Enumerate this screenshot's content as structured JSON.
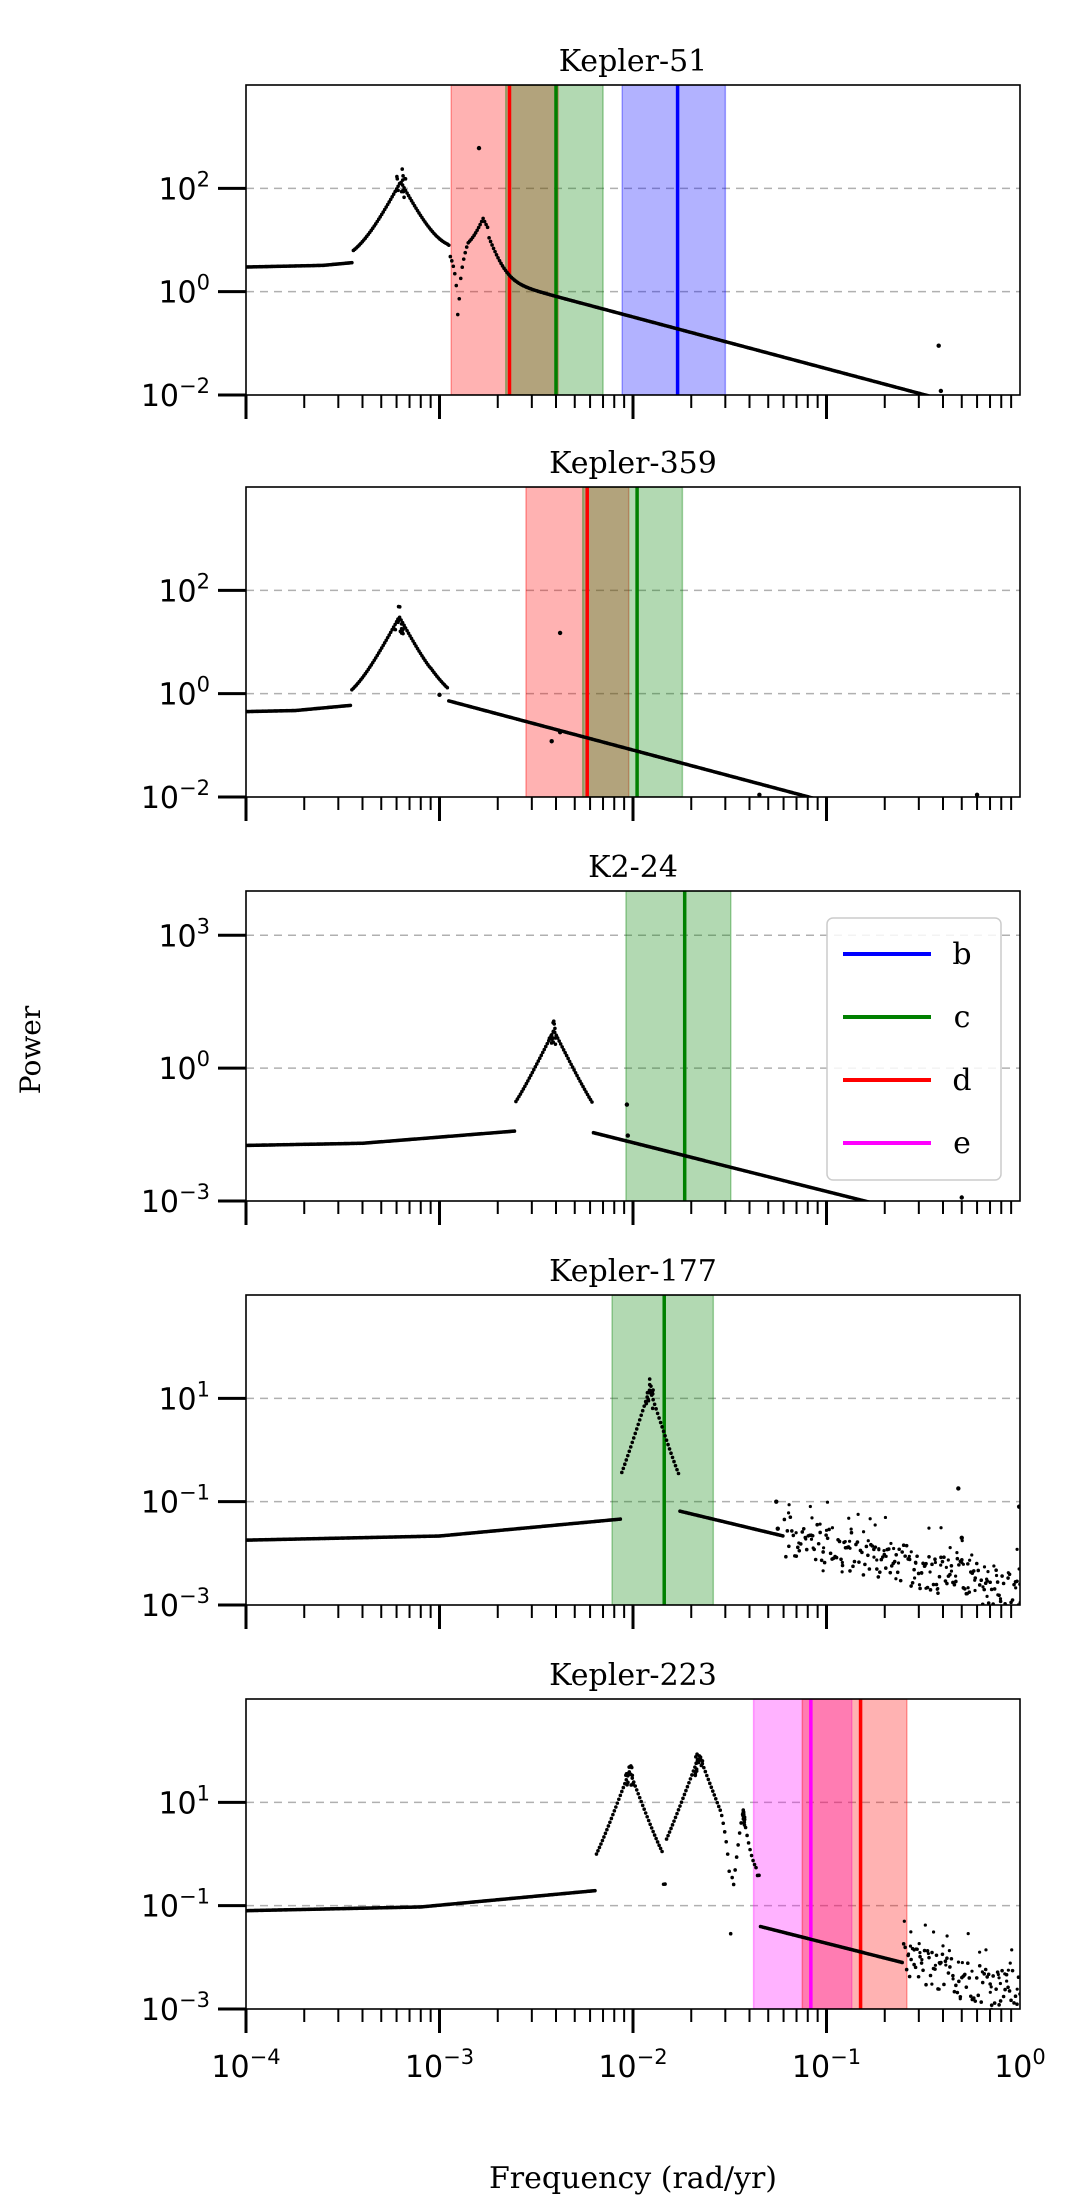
{
  "figure": {
    "ylabel": "Power",
    "xlabel": "Frequency (rad/yr)"
  },
  "legend": {
    "placement": "inside-right of K2-24 panel",
    "entries": [
      {
        "label": "b",
        "color": "#0000ff"
      },
      {
        "label": "c",
        "color": "#008000"
      },
      {
        "label": "d",
        "color": "#ff0000"
      },
      {
        "label": "e",
        "color": "#ff00ff"
      }
    ]
  },
  "chart_data": [
    {
      "type": "scatter",
      "title": "Kepler-51",
      "xscale": "log",
      "yscale": "log",
      "xlim": [
        0.0001,
        1
      ],
      "ylim": [
        0.01,
        10000
      ],
      "yticks": [
        {
          "value": 0.01,
          "label": "10^-2"
        },
        {
          "value": 1,
          "label": "10^0"
        },
        {
          "value": 100,
          "label": "10^2"
        }
      ],
      "xticklabels": false,
      "bands": [
        {
          "planet": "d",
          "color": "#ff0000",
          "lo": 0.00115,
          "hi": 0.0041,
          "center": 0.0023
        },
        {
          "planet": "c",
          "color": "#008000",
          "lo": 0.0022,
          "hi": 0.007,
          "center": 0.004
        },
        {
          "planet": "b",
          "color": "#0000ff",
          "lo": 0.0088,
          "hi": 0.03,
          "center": 0.017
        }
      ],
      "spectrum": {
        "floor": 3.0,
        "plateau_end": 0.00025,
        "peaks": [
          {
            "x": 0.00063,
            "amp": 130,
            "width": 0.1,
            "scatter": 0.15
          }
        ],
        "secondary": [
          {
            "x": 0.00168,
            "amp": 20,
            "width": 0.08
          }
        ],
        "dip": {
          "x": 0.00125,
          "depth": 0.04
        },
        "tail": {
          "start": 0.0018,
          "value": 1.8,
          "slope": -1.0
        },
        "outliers": [
          {
            "x": 0.0016,
            "y": 600
          },
          {
            "x": 0.38,
            "y": 0.09
          },
          {
            "x": 0.39,
            "y": 0.012
          }
        ]
      }
    },
    {
      "type": "scatter",
      "title": "Kepler-359",
      "xscale": "log",
      "yscale": "log",
      "xlim": [
        0.0001,
        1
      ],
      "ylim": [
        0.01,
        10000
      ],
      "yticks": [
        {
          "value": 0.01,
          "label": "10^-2"
        },
        {
          "value": 1,
          "label": "10^0"
        },
        {
          "value": 100,
          "label": "10^2"
        }
      ],
      "xticklabels": false,
      "bands": [
        {
          "planet": "d",
          "color": "#ff0000",
          "lo": 0.0028,
          "hi": 0.0095,
          "center": 0.0058
        },
        {
          "planet": "c",
          "color": "#008000",
          "lo": 0.0055,
          "hi": 0.018,
          "center": 0.0105
        }
      ],
      "spectrum": {
        "floor": 0.45,
        "plateau_end": 0.00018,
        "peaks": [
          {
            "x": 0.00062,
            "amp": 30,
            "width": 0.1,
            "scatter": 0.15
          }
        ],
        "secondary": [],
        "dip": null,
        "tail": {
          "start": 0.0009,
          "value": 0.9,
          "slope": -1.0
        },
        "outliers": [
          {
            "x": 0.001,
            "y": 0.95
          },
          {
            "x": 0.0042,
            "y": 15
          },
          {
            "x": 0.0042,
            "y": 0.18
          },
          {
            "x": 0.0038,
            "y": 0.12
          },
          {
            "x": 0.045,
            "y": 0.011
          },
          {
            "x": 0.6,
            "y": 0.011
          }
        ]
      }
    },
    {
      "type": "scatter",
      "title": "K2-24",
      "xscale": "log",
      "yscale": "log",
      "xlim": [
        0.0001,
        1
      ],
      "ylim": [
        0.001,
        10000
      ],
      "yticks": [
        {
          "value": 0.001,
          "label": "10^-3"
        },
        {
          "value": 1,
          "label": "10^0"
        },
        {
          "value": 1000,
          "label": "10^3"
        }
      ],
      "xticklabels": false,
      "bands": [
        {
          "planet": "c",
          "color": "#008000",
          "lo": 0.0092,
          "hi": 0.032,
          "center": 0.0185
        }
      ],
      "spectrum": {
        "floor": 0.018,
        "plateau_end": 0.0004,
        "peaks": [
          {
            "x": 0.0039,
            "amp": 7,
            "width": 0.08,
            "scatter": 0.12
          }
        ],
        "secondary": [],
        "dip": null,
        "tail": {
          "start": 0.0045,
          "value": 0.05,
          "slope": -1.1
        },
        "outliers": [
          {
            "x": 0.0093,
            "y": 0.15
          },
          {
            "x": 0.0094,
            "y": 0.03
          },
          {
            "x": 0.5,
            "y": 0.0012
          }
        ]
      }
    },
    {
      "type": "scatter",
      "title": "Kepler-177",
      "xscale": "log",
      "yscale": "log",
      "xlim": [
        0.0001,
        1
      ],
      "ylim": [
        0.001,
        1000
      ],
      "yticks": [
        {
          "value": 0.001,
          "label": "10^-3"
        },
        {
          "value": 0.1,
          "label": "10^-1"
        },
        {
          "value": 10,
          "label": "10^1"
        }
      ],
      "xticklabels": false,
      "bands": [
        {
          "planet": "c",
          "color": "#008000",
          "lo": 0.0078,
          "hi": 0.026,
          "center": 0.0145
        }
      ],
      "spectrum": {
        "floor": 0.018,
        "plateau_end": 0.001,
        "peaks": [
          {
            "x": 0.0122,
            "amp": 15,
            "width": 0.06,
            "scatter": 0.1
          }
        ],
        "secondary": [],
        "dip": null,
        "tail": {
          "start": 0.014,
          "value": 0.08,
          "slope": -0.9
        },
        "noisy_from": 0.06,
        "outliers": [
          {
            "x": 0.055,
            "y": 0.1
          },
          {
            "x": 0.056,
            "y": 0.03
          },
          {
            "x": 0.48,
            "y": 0.18
          },
          {
            "x": 0.5,
            "y": 0.02
          },
          {
            "x": 0.99,
            "y": 0.08
          }
        ]
      }
    },
    {
      "type": "scatter",
      "title": "Kepler-223",
      "xscale": "log",
      "yscale": "log",
      "xlim": [
        0.0001,
        1
      ],
      "ylim": [
        0.001,
        1000
      ],
      "yticks": [
        {
          "value": 0.001,
          "label": "10^-3"
        },
        {
          "value": 0.1,
          "label": "10^-1"
        },
        {
          "value": 10,
          "label": "10^1"
        }
      ],
      "xticklabels": true,
      "xticks": [
        {
          "value": 0.0001,
          "label": "10^-4"
        },
        {
          "value": 0.001,
          "label": "10^-3"
        },
        {
          "value": 0.01,
          "label": "10^-2"
        },
        {
          "value": 0.1,
          "label": "10^-1"
        },
        {
          "value": 1,
          "label": "10^0"
        }
      ],
      "bands": [
        {
          "planet": "e",
          "color": "#ff00ff",
          "lo": 0.042,
          "hi": 0.135,
          "center": 0.083
        },
        {
          "planet": "d",
          "color": "#ff0000",
          "lo": 0.075,
          "hi": 0.26,
          "center": 0.15
        }
      ],
      "spectrum": {
        "floor": 0.08,
        "plateau_end": 0.0008,
        "peaks": [
          {
            "x": 0.0096,
            "amp": 40,
            "width": 0.07,
            "scatter": 0.1
          },
          {
            "x": 0.022,
            "amp": 80,
            "width": 0.07,
            "scatter": 0.1
          },
          {
            "x": 0.037,
            "amp": 6,
            "width": 0.03,
            "scatter": 0.05
          }
        ],
        "secondary": [],
        "dip": {
          "x": 0.032,
          "depth": 0.012
        },
        "tail": {
          "start": 0.045,
          "value": 0.04,
          "slope": -0.95
        },
        "noisy_from": 0.25,
        "outliers": []
      }
    }
  ]
}
